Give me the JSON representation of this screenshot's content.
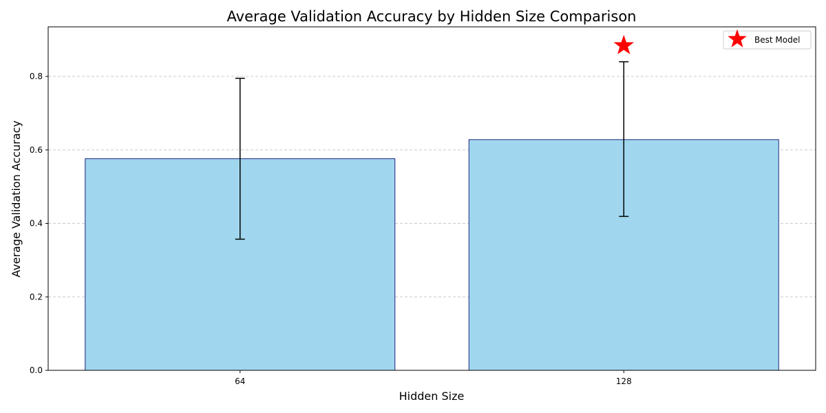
{
  "chart_data": {
    "type": "bar",
    "title": "Average Validation Accuracy by Hidden Size Comparison",
    "xlabel": "Hidden Size",
    "ylabel": "Average Validation Accuracy",
    "categories": [
      "64",
      "128"
    ],
    "values": [
      0.576,
      0.628
    ],
    "error_low": [
      0.357,
      0.419
    ],
    "error_high": [
      0.795,
      0.84
    ],
    "ylim": [
      0,
      0.935
    ],
    "yticks": [
      0.0,
      0.2,
      0.4,
      0.6,
      0.8
    ],
    "ytick_labels": [
      "0.0",
      "0.2",
      "0.4",
      "0.6",
      "0.8"
    ],
    "grid": "y-dashed",
    "best_model": {
      "category": "128",
      "y": 0.884,
      "label": "Best Model"
    },
    "legend": {
      "placement": "top-right",
      "entries": [
        "Best Model"
      ]
    },
    "colors": {
      "bar_fill": "#a0d7ee",
      "bar_edge": "#1a237e",
      "error_bar": "#000000",
      "star": "#ff0000",
      "grid": "#c8c8c8"
    }
  }
}
